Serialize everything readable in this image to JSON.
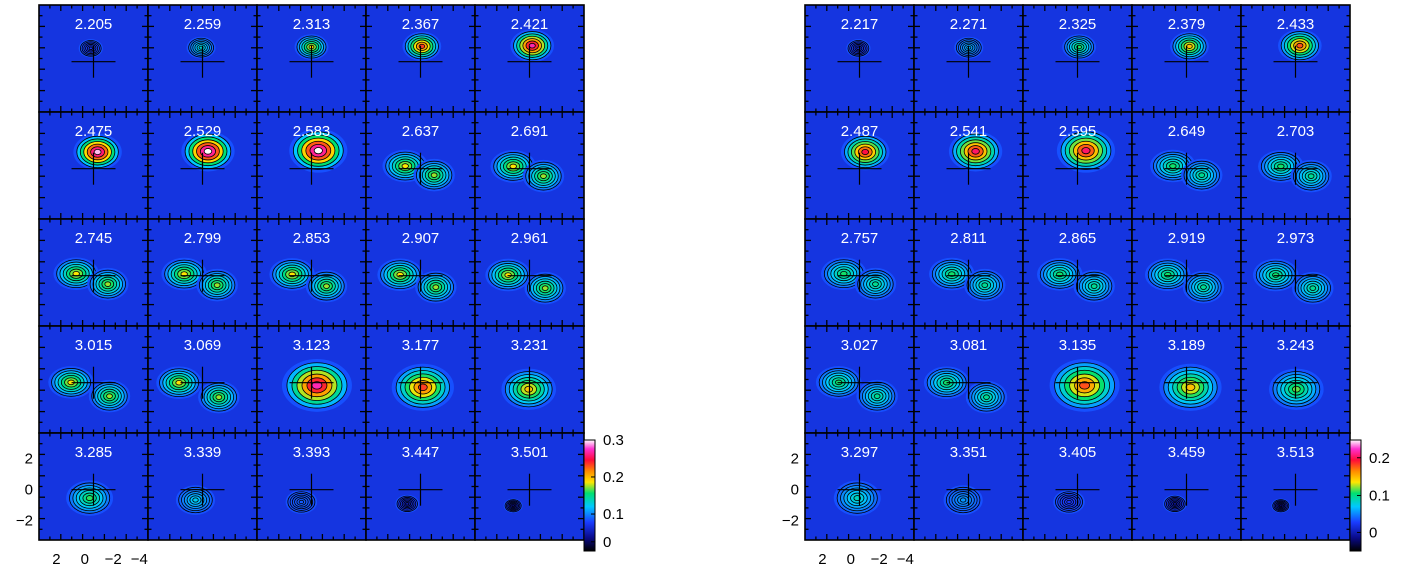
{
  "chart_data": [
    {
      "type": "heatmap",
      "title": "",
      "panel_labels": [
        "2.205",
        "2.259",
        "2.313",
        "2.367",
        "2.421",
        "2.475",
        "2.529",
        "2.583",
        "2.637",
        "2.691",
        "2.745",
        "2.799",
        "2.853",
        "2.907",
        "2.961",
        "3.015",
        "3.069",
        "3.123",
        "3.177",
        "3.231",
        "3.285",
        "3.339",
        "3.393",
        "3.447",
        "3.501"
      ],
      "x_ticks": [
        "2",
        "0",
        "−2",
        "−4"
      ],
      "y_ticks": [
        "2",
        "0",
        "−2"
      ],
      "colorbar": {
        "ticks": [
          "0.3",
          "0.2",
          "0.1",
          "0"
        ],
        "tick_values": [
          0.3,
          0.2,
          0.1,
          0
        ],
        "range": [
          -0.03,
          0.33
        ]
      }
    },
    {
      "type": "heatmap",
      "title": "",
      "panel_labels": [
        "2.217",
        "2.271",
        "2.325",
        "2.379",
        "2.433",
        "2.487",
        "2.541",
        "2.595",
        "2.649",
        "2.703",
        "2.757",
        "2.811",
        "2.865",
        "2.919",
        "2.973",
        "3.027",
        "3.081",
        "3.135",
        "3.189",
        "3.243",
        "3.297",
        "3.351",
        "3.405",
        "3.459",
        "3.513"
      ],
      "x_ticks": [
        "2",
        "0",
        "−2",
        "−4"
      ],
      "y_ticks": [
        "2",
        "0",
        "−2"
      ],
      "colorbar": {
        "ticks": [
          "0.2",
          "0.1",
          "0"
        ],
        "tick_values": [
          0.2,
          0.1,
          0
        ],
        "range": [
          -0.05,
          0.25
        ]
      }
    }
  ]
}
